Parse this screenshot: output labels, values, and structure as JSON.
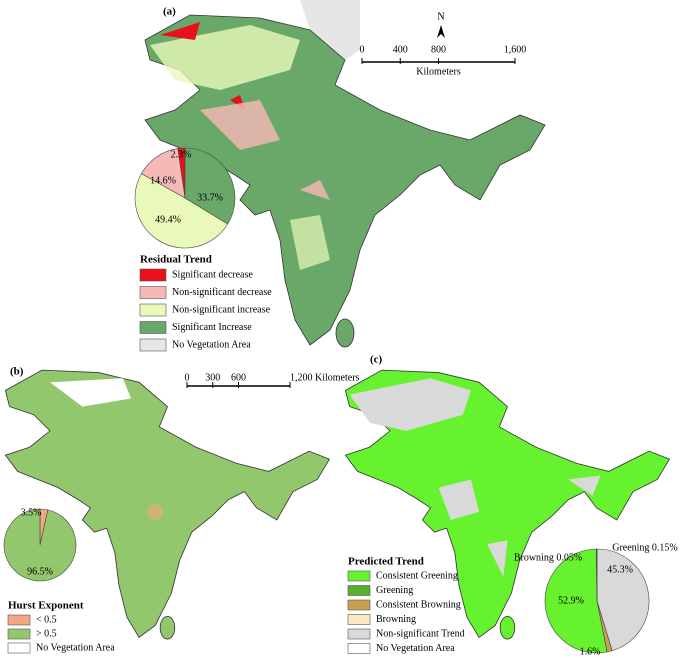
{
  "panels": [
    {
      "label": "(a)",
      "north": "N",
      "scale": {
        "ticks": [
          0,
          400,
          800,
          {
            "value": 1600,
            "label": "1,600"
          }
        ],
        "unit": "Kilometers"
      },
      "legend_title": "Residual Trend",
      "legend": [
        {
          "label": "Significant decrease",
          "color": "#e8101a"
        },
        {
          "label": "Non-significant decrease",
          "color": "#f7b8b8"
        },
        {
          "label": "Non-significant increase",
          "color": "#e9f9b9"
        },
        {
          "label": "Significant Increase",
          "color": "#6aa86a"
        },
        {
          "label": "No Vegetation Area",
          "color": "#e6e6e6"
        }
      ],
      "pie": {
        "values": [
          2.3,
          14.6,
          49.4,
          33.7
        ],
        "value_labels": [
          "2.3%",
          "14.6%",
          "49.4%",
          "33.7%"
        ],
        "colors": [
          "#e8101a",
          "#f7b8b8",
          "#e9f9b9",
          "#6aa86a"
        ]
      }
    },
    {
      "label": "(b)",
      "scale": {
        "ticks": [
          0,
          300,
          600,
          {
            "value": 1200,
            "label": "1,200 Kilometers"
          }
        ]
      },
      "legend_title": "Hurst Exponent",
      "legend": [
        {
          "label": "< 0.5",
          "color": "#f4a582"
        },
        {
          "label": "> 0.5",
          "color": "#92c76e"
        },
        {
          "label": "No Vegetation Area",
          "color": "#ffffff"
        }
      ],
      "pie": {
        "values": [
          3.5,
          96.5
        ],
        "value_labels": [
          "3.5%",
          "96.5%"
        ],
        "colors": [
          "#f4a582",
          "#92c76e"
        ]
      }
    },
    {
      "label": "(c)",
      "legend_title": "Predicted Trend",
      "legend": [
        {
          "label": "Consistent Greening",
          "color": "#66f22e"
        },
        {
          "label": "Greening",
          "color": "#59b02e"
        },
        {
          "label": "Consistent Browning",
          "color": "#c8a050"
        },
        {
          "label": "Browning",
          "color": "#fbe8c0"
        },
        {
          "label": "Non-significant Trend",
          "color": "#d9d9d9"
        },
        {
          "label": "No Vegetation Area",
          "color": "#ffffff"
        }
      ],
      "pie": {
        "values": [
          45.3,
          1.6,
          52.9,
          0.05,
          0.15
        ],
        "value_labels": [
          "45.3%",
          "1.6%",
          "52.9%",
          "Browning 0.05%",
          "Greening 0.15%"
        ],
        "colors": [
          "#d9d9d9",
          "#c8a050",
          "#66f22e",
          "#fbe8c0",
          "#59b02e"
        ]
      }
    }
  ]
}
